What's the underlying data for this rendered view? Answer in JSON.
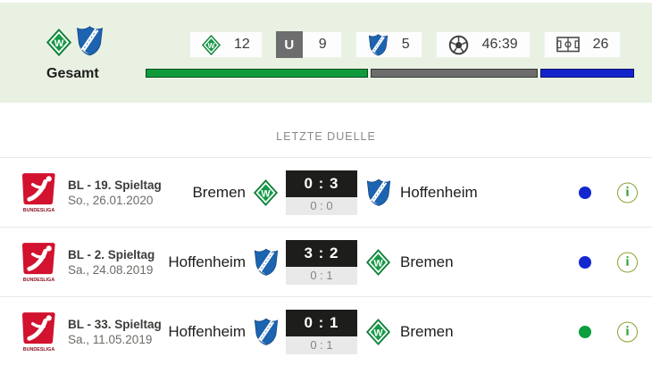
{
  "overall": {
    "label": "Gesamt",
    "stats": {
      "home_wins": "12",
      "draw_badge": "U",
      "draws": "9",
      "away_wins": "5",
      "goals": "46:39",
      "matches": "26"
    },
    "bar": {
      "segments": [
        {
          "name": "home-wins",
          "value": 12,
          "color": "#0f9b3c"
        },
        {
          "name": "draws",
          "value": 9,
          "color": "#6d6d6d"
        },
        {
          "name": "away-wins",
          "value": 5,
          "color": "#1523cd"
        }
      ]
    }
  },
  "section": {
    "title": "LETZTE DUELLE"
  },
  "matches": [
    {
      "competition": "BL - 19. Spieltag",
      "date": "So., 26.01.2020",
      "home_team": "Bremen",
      "away_team": "Hoffenheim",
      "score": "0 : 3",
      "halftime": "0 : 0",
      "result_color": "blue"
    },
    {
      "competition": "BL - 2. Spieltag",
      "date": "Sa., 24.08.2019",
      "home_team": "Hoffenheim",
      "away_team": "Bremen",
      "score": "3 : 2",
      "halftime": "0 : 1",
      "result_color": "blue"
    },
    {
      "competition": "BL - 33. Spieltag",
      "date": "Sa., 11.05.2019",
      "home_team": "Hoffenheim",
      "away_team": "Bremen",
      "score": "0 : 1",
      "halftime": "0 : 1",
      "result_color": "green"
    }
  ],
  "icons": {
    "info": "i"
  },
  "colors": {
    "panel_bg": "#e9f1e2",
    "score_bg": "#1d1d1b",
    "dot_blue": "#1327cf",
    "dot_green": "#0d9e3e",
    "info_border": "#8aa433"
  }
}
